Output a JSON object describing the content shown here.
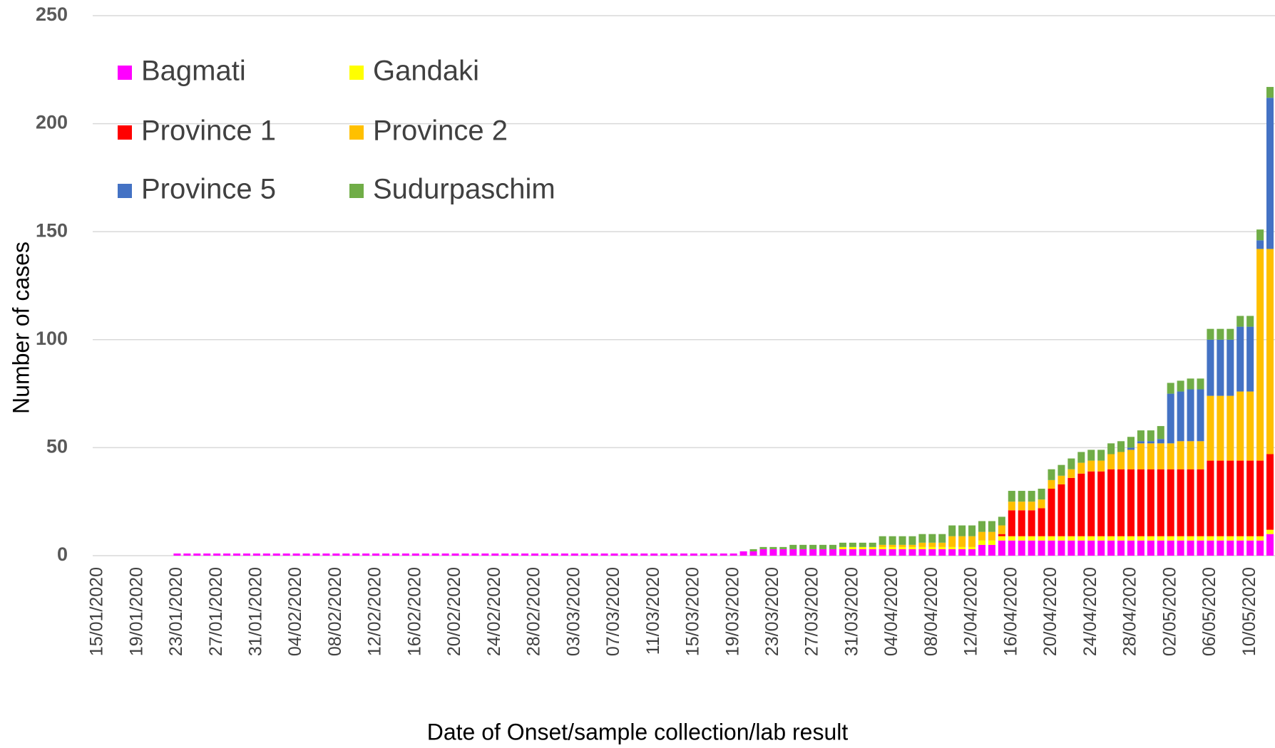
{
  "chart_data": {
    "type": "stacked_bar",
    "x_label": "Date of Onset/sample collection/lab result",
    "y_label": "Number of cases",
    "categories": [
      "15/01/2020",
      null,
      null,
      null,
      "19/01/2020",
      null,
      null,
      null,
      "23/01/2020",
      null,
      null,
      null,
      "27/01/2020",
      null,
      null,
      null,
      "31/01/2020",
      null,
      null,
      null,
      "04/02/2020",
      null,
      null,
      null,
      "08/02/2020",
      null,
      null,
      null,
      "12/02/2020",
      null,
      null,
      null,
      "16/02/2020",
      null,
      null,
      null,
      "20/02/2020",
      null,
      null,
      null,
      "24/02/2020",
      null,
      null,
      null,
      "28/02/2020",
      null,
      null,
      null,
      "03/03/2020",
      null,
      null,
      null,
      "07/03/2020",
      null,
      null,
      null,
      "11/03/2020",
      null,
      null,
      null,
      "15/03/2020",
      null,
      null,
      null,
      "19/03/2020",
      null,
      null,
      null,
      "23/03/2020",
      null,
      null,
      null,
      "27/03/2020",
      null,
      null,
      null,
      "31/03/2020",
      null,
      null,
      null,
      "04/04/2020",
      null,
      null,
      null,
      "08/04/2020",
      null,
      null,
      null,
      "12/04/2020",
      null,
      null,
      null,
      "16/04/2020",
      null,
      null,
      null,
      "20/04/2020",
      null,
      null,
      null,
      "24/04/2020",
      null,
      null,
      null,
      "28/04/2020",
      null,
      null,
      null,
      "02/05/2020",
      null,
      null,
      null,
      "06/05/2020",
      null,
      null,
      null,
      "10/05/2020",
      null,
      null
    ],
    "series": [
      {
        "name": "Bagmati",
        "color": "#ff00ff",
        "values": [
          0,
          0,
          0,
          0,
          0,
          0,
          0,
          0,
          1,
          1,
          1,
          1,
          1,
          1,
          1,
          1,
          1,
          1,
          1,
          1,
          1,
          1,
          1,
          1,
          1,
          1,
          1,
          1,
          1,
          1,
          1,
          1,
          1,
          1,
          1,
          1,
          1,
          1,
          1,
          1,
          1,
          1,
          1,
          1,
          1,
          1,
          1,
          1,
          1,
          1,
          1,
          1,
          1,
          1,
          1,
          1,
          1,
          1,
          1,
          1,
          1,
          1,
          1,
          1,
          1,
          2,
          2,
          3,
          3,
          3,
          3,
          3,
          3,
          3,
          3,
          3,
          3,
          3,
          3,
          3,
          3,
          3,
          3,
          3,
          3,
          3,
          3,
          3,
          3,
          5,
          5,
          7,
          7,
          7,
          7,
          7,
          7,
          7,
          7,
          7,
          7,
          7,
          7,
          7,
          7,
          7,
          7,
          7,
          7,
          7,
          7,
          7,
          7,
          7,
          7,
          7,
          7,
          7,
          10
        ]
      },
      {
        "name": "Gandaki",
        "color": "#ffff00",
        "values": [
          0,
          0,
          0,
          0,
          0,
          0,
          0,
          0,
          0,
          0,
          0,
          0,
          0,
          0,
          0,
          0,
          0,
          0,
          0,
          0,
          0,
          0,
          0,
          0,
          0,
          0,
          0,
          0,
          0,
          0,
          0,
          0,
          0,
          0,
          0,
          0,
          0,
          0,
          0,
          0,
          0,
          0,
          0,
          0,
          0,
          0,
          0,
          0,
          0,
          0,
          0,
          0,
          0,
          0,
          0,
          0,
          0,
          0,
          0,
          0,
          0,
          0,
          0,
          0,
          0,
          0,
          0,
          0,
          0,
          0,
          0,
          0,
          0,
          0,
          0,
          1,
          1,
          1,
          1,
          1,
          1,
          1,
          1,
          1,
          1,
          1,
          1,
          1,
          1,
          2,
          2,
          2,
          2,
          2,
          2,
          2,
          2,
          2,
          2,
          2,
          2,
          2,
          2,
          2,
          2,
          2,
          2,
          2,
          2,
          2,
          2,
          2,
          2,
          2,
          2,
          2,
          2,
          2,
          2
        ]
      },
      {
        "name": "Province 1",
        "color": "#ff0000",
        "values": [
          0,
          0,
          0,
          0,
          0,
          0,
          0,
          0,
          0,
          0,
          0,
          0,
          0,
          0,
          0,
          0,
          0,
          0,
          0,
          0,
          0,
          0,
          0,
          0,
          0,
          0,
          0,
          0,
          0,
          0,
          0,
          0,
          0,
          0,
          0,
          0,
          0,
          0,
          0,
          0,
          0,
          0,
          0,
          0,
          0,
          0,
          0,
          0,
          0,
          0,
          0,
          0,
          0,
          0,
          0,
          0,
          0,
          0,
          0,
          0,
          0,
          0,
          0,
          0,
          0,
          0,
          0,
          0,
          0,
          0,
          0,
          0,
          0,
          0,
          0,
          0,
          0,
          0,
          0,
          0,
          0,
          0,
          0,
          0,
          0,
          0,
          0,
          0,
          0,
          0,
          0,
          1,
          12,
          12,
          12,
          13,
          22,
          24,
          27,
          29,
          30,
          30,
          31,
          31,
          31,
          31,
          31,
          31,
          31,
          31,
          31,
          31,
          35,
          35,
          35,
          35,
          35,
          35,
          35
        ]
      },
      {
        "name": "Province 2",
        "color": "#ffc000",
        "values": [
          0,
          0,
          0,
          0,
          0,
          0,
          0,
          0,
          0,
          0,
          0,
          0,
          0,
          0,
          0,
          0,
          0,
          0,
          0,
          0,
          0,
          0,
          0,
          0,
          0,
          0,
          0,
          0,
          0,
          0,
          0,
          0,
          0,
          0,
          0,
          0,
          0,
          0,
          0,
          0,
          0,
          0,
          0,
          0,
          0,
          0,
          0,
          0,
          0,
          0,
          0,
          0,
          0,
          0,
          0,
          0,
          0,
          0,
          0,
          0,
          0,
          0,
          0,
          0,
          0,
          0,
          0,
          0,
          0,
          0,
          0,
          0,
          0,
          0,
          0,
          0,
          0,
          0,
          0,
          1,
          1,
          1,
          1,
          2,
          2,
          2,
          5,
          5,
          5,
          4,
          4,
          4,
          4,
          4,
          4,
          4,
          4,
          4,
          4,
          5,
          5,
          5,
          7,
          8,
          9,
          12,
          12,
          12,
          12,
          13,
          13,
          13,
          30,
          30,
          30,
          32,
          32,
          98,
          95
        ]
      },
      {
        "name": "Province 5",
        "color": "#4472c4",
        "values": [
          0,
          0,
          0,
          0,
          0,
          0,
          0,
          0,
          0,
          0,
          0,
          0,
          0,
          0,
          0,
          0,
          0,
          0,
          0,
          0,
          0,
          0,
          0,
          0,
          0,
          0,
          0,
          0,
          0,
          0,
          0,
          0,
          0,
          0,
          0,
          0,
          0,
          0,
          0,
          0,
          0,
          0,
          0,
          0,
          0,
          0,
          0,
          0,
          0,
          0,
          0,
          0,
          0,
          0,
          0,
          0,
          0,
          0,
          0,
          0,
          0,
          0,
          0,
          0,
          0,
          0,
          0,
          0,
          0,
          0,
          0,
          0,
          0,
          0,
          0,
          0,
          0,
          0,
          0,
          0,
          0,
          0,
          0,
          0,
          0,
          0,
          0,
          0,
          0,
          0,
          0,
          0,
          0,
          0,
          0,
          0,
          0,
          0,
          0,
          0,
          0,
          0,
          0,
          0,
          1,
          1,
          1,
          2,
          23,
          23,
          24,
          24,
          26,
          26,
          26,
          30,
          30,
          4,
          70
        ]
      },
      {
        "name": "Sudurpaschim",
        "color": "#70ad47",
        "values": [
          0,
          0,
          0,
          0,
          0,
          0,
          0,
          0,
          0,
          0,
          0,
          0,
          0,
          0,
          0,
          0,
          0,
          0,
          0,
          0,
          0,
          0,
          0,
          0,
          0,
          0,
          0,
          0,
          0,
          0,
          0,
          0,
          0,
          0,
          0,
          0,
          0,
          0,
          0,
          0,
          0,
          0,
          0,
          0,
          0,
          0,
          0,
          0,
          0,
          0,
          0,
          0,
          0,
          0,
          0,
          0,
          0,
          0,
          0,
          0,
          0,
          0,
          0,
          0,
          0,
          0,
          1,
          1,
          1,
          1,
          2,
          2,
          2,
          2,
          2,
          2,
          2,
          2,
          2,
          4,
          4,
          4,
          4,
          4,
          4,
          4,
          5,
          5,
          5,
          5,
          5,
          4,
          5,
          5,
          5,
          5,
          5,
          5,
          5,
          5,
          5,
          5,
          5,
          5,
          5,
          5,
          5,
          6,
          5,
          5,
          5,
          5,
          5,
          5,
          5,
          5,
          5,
          5,
          5
        ]
      }
    ],
    "ylim": [
      0,
      250
    ],
    "yticks": [
      0,
      50,
      100,
      150,
      200,
      250
    ],
    "grid": true
  }
}
